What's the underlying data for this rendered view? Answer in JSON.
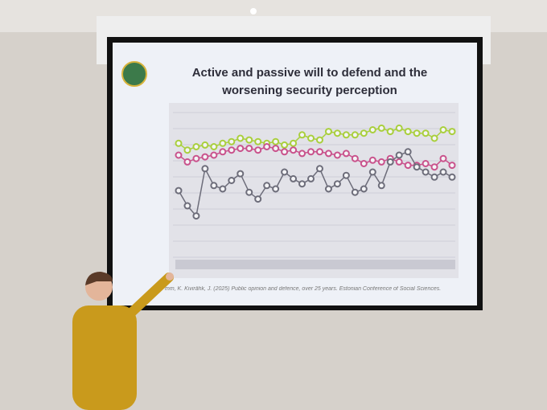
{
  "screen": {
    "chart_data": {
      "type": "line",
      "title": "Active and passive will to defend and the worsening security perception",
      "ylim": [
        0,
        100
      ],
      "series": [
        {
          "color": "#a9cf3c",
          "values": [
            77,
            73,
            75,
            76,
            75,
            77,
            78,
            80,
            79,
            78,
            77,
            78,
            76,
            77,
            82,
            80,
            79,
            84,
            83,
            82,
            82,
            83,
            85,
            86,
            84,
            86,
            84,
            83,
            83,
            80,
            85,
            84
          ]
        },
        {
          "color": "#c9528c",
          "values": [
            70,
            66,
            68,
            69,
            70,
            72,
            73,
            74,
            74,
            73,
            75,
            74,
            72,
            73,
            71,
            72,
            72,
            71,
            70,
            71,
            68,
            65,
            67,
            66,
            68,
            66,
            64,
            64,
            65,
            63,
            68,
            64
          ]
        },
        {
          "color": "#6d6d7a",
          "values": [
            49,
            40,
            34,
            62,
            52,
            50,
            55,
            59,
            48,
            44,
            52,
            50,
            60,
            56,
            53,
            56,
            62,
            50,
            53,
            58,
            48,
            50,
            60,
            52,
            66,
            70,
            72,
            63,
            60,
            57,
            60,
            57
          ]
        }
      ]
    },
    "citation": "mm, K. Kivirähk, J. (2025) Public opinion and defence, over 25 years. Estonian Conference of Social Sciences."
  }
}
